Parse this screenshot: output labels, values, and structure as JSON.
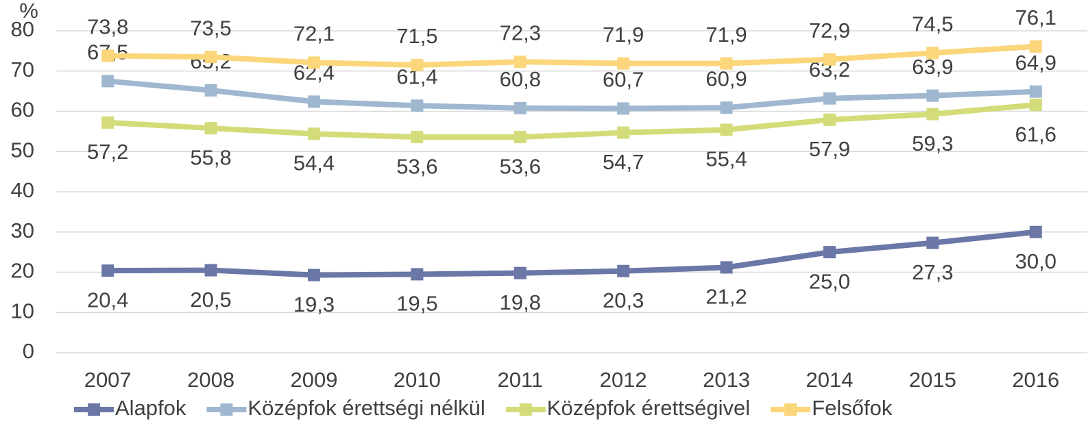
{
  "chart_data": {
    "type": "line",
    "ylabel": "%",
    "categories": [
      "2007",
      "2008",
      "2009",
      "2010",
      "2011",
      "2012",
      "2013",
      "2014",
      "2015",
      "2016"
    ],
    "ylim": [
      0,
      80
    ],
    "yticks": [
      0,
      10,
      20,
      30,
      40,
      50,
      60,
      70,
      80
    ],
    "grid": true,
    "legend": "bottom",
    "series": [
      {
        "name": "Alapfok",
        "color": "#6b77a6",
        "values": [
          20.4,
          20.5,
          19.3,
          19.5,
          19.8,
          20.3,
          21.2,
          25.0,
          27.3,
          30.0
        ],
        "value_labels": [
          "20,4",
          "20,5",
          "19,3",
          "19,5",
          "19,8",
          "20,3",
          "21,2",
          "25,0",
          "27,3",
          "30,0"
        ]
      },
      {
        "name": "Középfok érettségi nélkül",
        "color": "#9fb8d0",
        "values": [
          67.5,
          65.2,
          62.4,
          61.4,
          60.8,
          60.7,
          60.9,
          63.2,
          63.9,
          64.9
        ],
        "value_labels": [
          "67,5",
          "65,2",
          "62,4",
          "61,4",
          "60,8",
          "60,7",
          "60,9",
          "63,2",
          "63,9",
          "64,9"
        ]
      },
      {
        "name": "Középfok érettségivel",
        "color": "#d3dc78",
        "values": [
          57.2,
          55.8,
          54.4,
          53.6,
          53.6,
          54.7,
          55.4,
          57.9,
          59.3,
          61.6
        ],
        "value_labels": [
          "57,2",
          "55,8",
          "54,4",
          "53,6",
          "53,6",
          "54,7",
          "55,4",
          "57,9",
          "59,3",
          "61,6"
        ]
      },
      {
        "name": "Felsőfok",
        "color": "#fbd67a",
        "values": [
          73.8,
          73.5,
          72.1,
          71.5,
          72.3,
          71.9,
          71.9,
          72.9,
          74.5,
          76.1
        ],
        "value_labels": [
          "73,8",
          "73,5",
          "72,1",
          "71,5",
          "72,3",
          "71,9",
          "71,9",
          "72,9",
          "74,5",
          "76,1"
        ]
      }
    ]
  }
}
